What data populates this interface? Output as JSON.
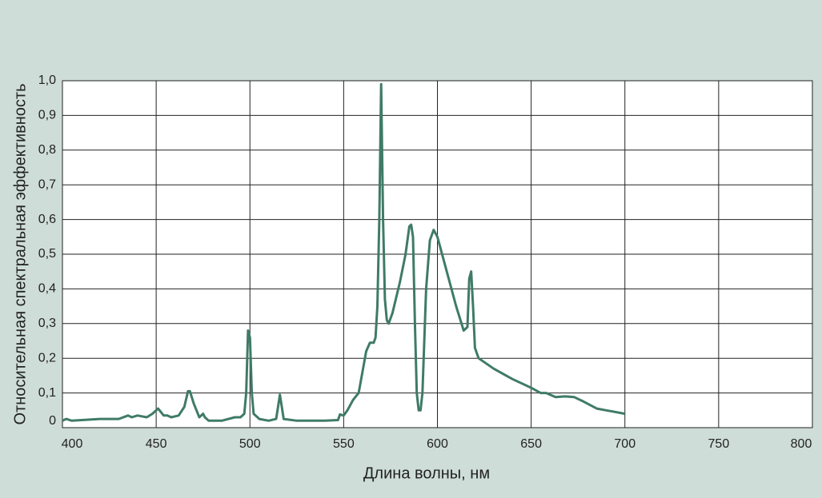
{
  "chart_data": {
    "type": "line",
    "xlabel": "Длина волны, нм",
    "ylabel": "Относительная спектральная эффективность",
    "xlim": [
      400,
      800
    ],
    "xticks": [
      400,
      450,
      500,
      550,
      600,
      650,
      700,
      750,
      800
    ],
    "ylim": [
      0,
      1
    ],
    "yticks": [
      0,
      {
        "value": 0.1,
        "label": "0,1"
      },
      {
        "value": 0.2,
        "label": "0,2"
      },
      {
        "value": 0.3,
        "label": "0,3"
      },
      {
        "value": 0.4,
        "label": "0,4"
      },
      {
        "value": 0.5,
        "label": "0,5"
      },
      {
        "value": 0.6,
        "label": "0,6"
      },
      {
        "value": 0.7,
        "label": "0,7"
      },
      {
        "value": 0.8,
        "label": "0,8"
      },
      {
        "value": 0.9,
        "label": "0,9"
      },
      {
        "value": 1,
        "label": "1,0"
      }
    ],
    "grid": true,
    "color": "#3f7b66",
    "x": [
      400,
      402,
      405,
      420,
      430,
      435,
      437,
      440,
      445,
      448,
      451,
      454,
      456,
      458,
      462,
      465,
      467,
      468,
      470,
      473,
      475,
      476,
      478,
      485,
      492,
      495,
      497,
      498,
      499,
      500,
      501,
      502,
      505,
      510,
      514,
      515,
      516,
      517,
      518,
      525,
      540,
      547,
      548,
      550,
      552,
      555,
      558,
      560,
      562,
      564,
      566,
      567,
      568,
      569,
      570,
      571,
      572,
      573,
      574,
      576,
      580,
      583,
      585,
      586,
      587,
      588,
      589,
      590,
      591,
      592,
      594,
      596,
      598,
      600,
      605,
      610,
      614,
      616,
      617,
      618,
      619,
      620,
      622,
      630,
      640,
      650,
      655,
      658,
      663,
      668,
      673,
      678,
      685,
      690,
      700
    ],
    "values": [
      0.02,
      0.025,
      0.02,
      0.025,
      0.025,
      0.035,
      0.03,
      0.035,
      0.03,
      0.04,
      0.055,
      0.035,
      0.035,
      0.03,
      0.035,
      0.06,
      0.105,
      0.105,
      0.07,
      0.03,
      0.04,
      0.03,
      0.02,
      0.02,
      0.03,
      0.03,
      0.04,
      0.1,
      0.28,
      0.26,
      0.1,
      0.04,
      0.025,
      0.02,
      0.025,
      0.06,
      0.095,
      0.06,
      0.025,
      0.02,
      0.02,
      0.022,
      0.038,
      0.035,
      0.05,
      0.08,
      0.1,
      0.16,
      0.22,
      0.245,
      0.245,
      0.26,
      0.35,
      0.6,
      0.99,
      0.6,
      0.37,
      0.31,
      0.3,
      0.33,
      0.42,
      0.5,
      0.58,
      0.585,
      0.55,
      0.3,
      0.1,
      0.05,
      0.05,
      0.1,
      0.4,
      0.54,
      0.57,
      0.55,
      0.45,
      0.35,
      0.28,
      0.29,
      0.43,
      0.45,
      0.35,
      0.23,
      0.2,
      0.17,
      0.14,
      0.115,
      0.1,
      0.1,
      0.088,
      0.09,
      0.088,
      0.075,
      0.055,
      0.05,
      0.04
    ]
  }
}
